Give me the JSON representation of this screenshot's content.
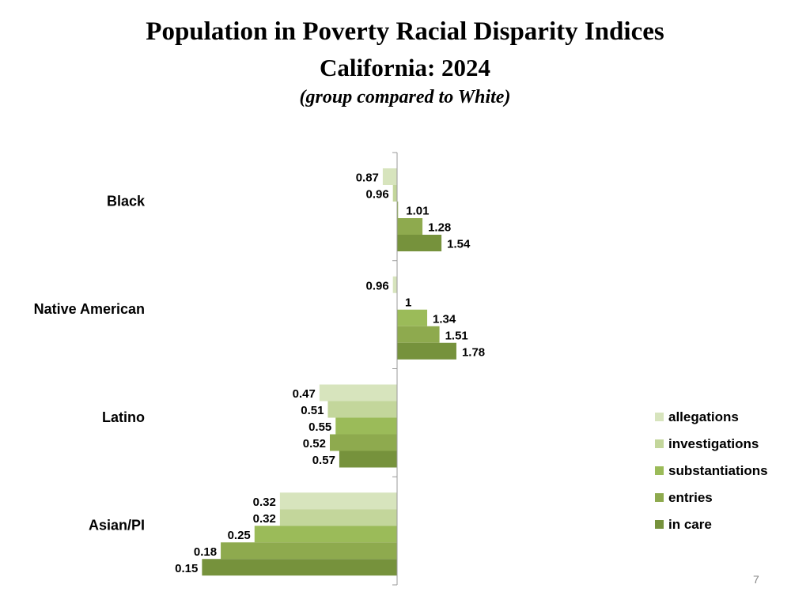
{
  "chart_data": {
    "type": "bar",
    "orientation": "horizontal",
    "title": "Population in Poverty Racial Disparity Indices",
    "subtitle": "California: 2024",
    "note": "(group compared to White)",
    "x_scale": "log",
    "baseline": 1,
    "categories": [
      "Black",
      "Native American",
      "Latino",
      "Asian/PI"
    ],
    "series": [
      {
        "name": "allegations",
        "color": "#d7e4bd",
        "values": [
          0.87,
          0.96,
          0.47,
          0.32
        ]
      },
      {
        "name": "investigations",
        "color": "#c3d69b",
        "values": [
          0.96,
          1,
          0.51,
          0.32
        ]
      },
      {
        "name": "substantiations",
        "color": "#9bbb59",
        "values": [
          1.01,
          1.34,
          0.55,
          0.25
        ]
      },
      {
        "name": "entries",
        "color": "#8eaa4e",
        "values": [
          1.28,
          1.51,
          0.52,
          0.18
        ]
      },
      {
        "name": "in care",
        "color": "#76923c",
        "values": [
          1.54,
          1.78,
          0.57,
          0.15
        ]
      }
    ],
    "data_labels": true,
    "grid": false,
    "legend_position": "right"
  },
  "page_number": "7"
}
